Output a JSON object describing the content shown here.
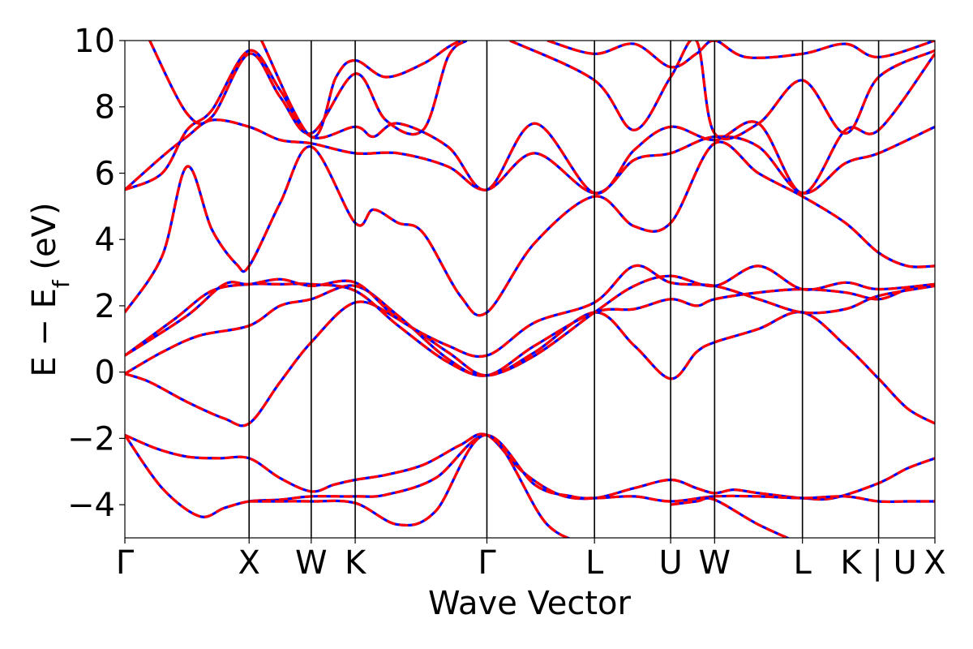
{
  "chart_data": {
    "type": "line",
    "xlabel": "Wave Vector",
    "ylabel": {
      "prefix": "E − E",
      "subscript": "f",
      "suffix": " (eV)"
    },
    "ylim": [
      -5,
      10
    ],
    "yticks": [
      -4,
      -2,
      0,
      2,
      4,
      6,
      8,
      10
    ],
    "ytick_labels": [
      "−4",
      "−2",
      "0",
      "2",
      "4",
      "6",
      "8",
      "10"
    ],
    "xlim": [
      0,
      6.52
    ],
    "kpoints": [
      {
        "label": "Γ",
        "x": 0.0
      },
      {
        "label": "X",
        "x": 1.0
      },
      {
        "label": "W",
        "x": 1.5
      },
      {
        "label": "K",
        "x": 1.854
      },
      {
        "label": "Γ",
        "x": 2.914
      },
      {
        "label": "L",
        "x": 3.78
      },
      {
        "label": "U",
        "x": 4.393
      },
      {
        "label": "W",
        "x": 4.747
      },
      {
        "label": "L",
        "x": 5.454
      },
      {
        "label": "K | U",
        "x": 6.067
      },
      {
        "label": "X",
        "x": 6.52
      }
    ],
    "colors": {
      "line_primary": "#ff0000",
      "line_secondary": "#0000ff",
      "divider": "#000000"
    },
    "series": [
      {
        "values": [
          [
            0.0,
            -1.9
          ],
          [
            0.25,
            -2.3
          ],
          [
            0.5,
            -2.55
          ],
          [
            0.75,
            -2.6
          ],
          [
            1.0,
            -2.6
          ],
          [
            1.25,
            -3.2
          ],
          [
            1.5,
            -3.6
          ],
          [
            1.68,
            -3.4
          ],
          [
            1.854,
            -3.25
          ],
          [
            2.1,
            -3.1
          ],
          [
            2.4,
            -2.8
          ],
          [
            2.7,
            -2.2
          ],
          [
            2.914,
            -1.9
          ],
          [
            3.2,
            -3.0
          ],
          [
            3.5,
            -3.7
          ],
          [
            3.78,
            -3.8
          ],
          [
            4.1,
            -3.5
          ],
          [
            4.393,
            -3.25
          ],
          [
            4.6,
            -3.5
          ],
          [
            4.747,
            -3.65
          ],
          [
            4.9,
            -3.55
          ],
          [
            5.1,
            -3.65
          ],
          [
            5.454,
            -3.8
          ],
          [
            5.7,
            -3.8
          ],
          [
            6.067,
            -3.35
          ],
          [
            6.3,
            -2.9
          ],
          [
            6.52,
            -2.6
          ]
        ]
      },
      {
        "values": [
          [
            0.0,
            -1.9
          ],
          [
            0.3,
            -3.5
          ],
          [
            0.6,
            -4.35
          ],
          [
            0.8,
            -4.1
          ],
          [
            1.0,
            -3.9
          ],
          [
            1.25,
            -3.85
          ],
          [
            1.5,
            -3.75
          ],
          [
            1.854,
            -3.75
          ],
          [
            2.1,
            -3.7
          ],
          [
            2.5,
            -3.2
          ],
          [
            2.914,
            -1.9
          ],
          [
            3.3,
            -3.4
          ],
          [
            3.6,
            -3.75
          ],
          [
            3.78,
            -3.8
          ],
          [
            4.1,
            -3.75
          ],
          [
            4.393,
            -3.9
          ],
          [
            4.747,
            -3.75
          ],
          [
            5.1,
            -3.75
          ],
          [
            5.454,
            -3.8
          ],
          [
            5.8,
            -3.75
          ],
          [
            6.067,
            -3.9
          ],
          [
            6.3,
            -3.9
          ],
          [
            6.52,
            -3.9
          ]
        ]
      },
      {
        "values": [
          [
            1.0,
            -3.9
          ],
          [
            1.25,
            -3.9
          ],
          [
            1.5,
            -3.9
          ],
          [
            1.854,
            -3.95
          ],
          [
            2.2,
            -4.6
          ],
          [
            2.5,
            -4.2
          ],
          [
            2.914,
            -1.9
          ],
          [
            3.4,
            -4.6
          ],
          [
            3.78,
            -5.2
          ]
        ]
      },
      {
        "values": [
          [
            4.393,
            -4.0
          ],
          [
            4.6,
            -3.9
          ],
          [
            4.747,
            -3.85
          ],
          [
            5.1,
            -4.6
          ],
          [
            5.454,
            -5.2
          ]
        ]
      },
      {
        "values": [
          [
            0.0,
            -0.05
          ],
          [
            0.2,
            -0.3
          ],
          [
            0.5,
            -0.9
          ],
          [
            0.8,
            -1.4
          ],
          [
            1.0,
            -1.55
          ],
          [
            1.25,
            -0.3
          ],
          [
            1.5,
            0.9
          ],
          [
            1.854,
            2.1
          ],
          [
            2.2,
            1.6
          ],
          [
            2.6,
            0.6
          ],
          [
            2.914,
            -0.1
          ],
          [
            3.3,
            0.6
          ],
          [
            3.78,
            1.8
          ],
          [
            4.1,
            0.8
          ],
          [
            4.393,
            -0.2
          ],
          [
            4.6,
            0.6
          ],
          [
            4.747,
            0.9
          ],
          [
            5.1,
            1.3
          ],
          [
            5.454,
            1.8
          ],
          [
            5.8,
            0.8
          ],
          [
            6.067,
            -0.2
          ],
          [
            6.3,
            -1.1
          ],
          [
            6.52,
            -1.55
          ]
        ]
      },
      {
        "values": [
          [
            0.0,
            -0.05
          ],
          [
            0.3,
            0.6
          ],
          [
            0.6,
            1.1
          ],
          [
            1.0,
            1.4
          ],
          [
            1.25,
            2.0
          ],
          [
            1.5,
            2.2
          ],
          [
            1.854,
            2.6
          ],
          [
            2.2,
            1.7
          ],
          [
            2.6,
            0.4
          ],
          [
            2.914,
            -0.1
          ],
          [
            3.3,
            0.8
          ],
          [
            3.78,
            1.8
          ],
          [
            4.1,
            1.9
          ],
          [
            4.393,
            2.2
          ],
          [
            4.6,
            2.0
          ],
          [
            4.747,
            2.2
          ],
          [
            5.1,
            2.4
          ],
          [
            5.454,
            2.5
          ],
          [
            5.8,
            2.4
          ],
          [
            6.067,
            2.2
          ],
          [
            6.3,
            2.5
          ],
          [
            6.52,
            2.65
          ]
        ]
      },
      {
        "values": [
          [
            0.0,
            0.5
          ],
          [
            0.4,
            1.6
          ],
          [
            0.7,
            2.45
          ],
          [
            1.0,
            2.65
          ],
          [
            1.25,
            2.65
          ],
          [
            1.5,
            2.65
          ],
          [
            1.854,
            2.45
          ],
          [
            2.2,
            1.4
          ],
          [
            2.6,
            0.3
          ],
          [
            2.914,
            -0.1
          ],
          [
            3.3,
            0.5
          ],
          [
            3.78,
            1.8
          ],
          [
            4.1,
            2.6
          ],
          [
            4.393,
            2.9
          ],
          [
            4.747,
            2.6
          ],
          [
            5.1,
            3.2
          ],
          [
            5.454,
            2.5
          ],
          [
            5.8,
            2.7
          ],
          [
            6.067,
            2.5
          ],
          [
            6.52,
            2.65
          ]
        ]
      },
      {
        "values": [
          [
            0.0,
            0.5
          ],
          [
            0.5,
            1.7
          ],
          [
            0.8,
            2.65
          ],
          [
            1.0,
            2.65
          ],
          [
            1.25,
            2.8
          ],
          [
            1.5,
            2.6
          ],
          [
            1.854,
            2.7
          ],
          [
            2.2,
            1.6
          ],
          [
            2.6,
            0.8
          ],
          [
            2.914,
            0.5
          ],
          [
            3.3,
            1.5
          ],
          [
            3.78,
            2.1
          ],
          [
            4.1,
            3.2
          ],
          [
            4.393,
            2.7
          ],
          [
            4.747,
            2.6
          ],
          [
            5.1,
            2.2
          ],
          [
            5.454,
            1.8
          ],
          [
            5.8,
            1.9
          ],
          [
            6.067,
            2.3
          ],
          [
            6.52,
            2.6
          ]
        ]
      },
      {
        "values": [
          [
            0.0,
            1.8
          ],
          [
            0.3,
            3.5
          ],
          [
            0.5,
            6.2
          ],
          [
            0.7,
            4.3
          ],
          [
            0.9,
            3.25
          ],
          [
            1.0,
            3.2
          ],
          [
            1.25,
            5.1
          ],
          [
            1.5,
            6.8
          ],
          [
            1.854,
            4.5
          ],
          [
            2.0,
            4.9
          ],
          [
            2.2,
            4.5
          ],
          [
            2.4,
            4.2
          ],
          [
            2.7,
            2.3
          ],
          [
            2.914,
            1.8
          ],
          [
            3.3,
            3.9
          ],
          [
            3.78,
            5.3
          ],
          [
            4.1,
            4.4
          ],
          [
            4.393,
            4.5
          ],
          [
            4.747,
            6.9
          ],
          [
            5.1,
            6.0
          ],
          [
            5.454,
            5.3
          ],
          [
            5.8,
            4.5
          ],
          [
            6.067,
            3.6
          ],
          [
            6.3,
            3.2
          ],
          [
            6.52,
            3.2
          ]
        ]
      },
      {
        "values": [
          [
            0.0,
            5.5
          ],
          [
            0.3,
            6.5
          ],
          [
            0.5,
            7.1
          ],
          [
            0.7,
            7.6
          ],
          [
            1.0,
            7.4
          ],
          [
            1.25,
            7.0
          ],
          [
            1.5,
            6.9
          ],
          [
            1.854,
            6.6
          ],
          [
            2.2,
            6.6
          ],
          [
            2.6,
            6.2
          ],
          [
            2.914,
            5.5
          ],
          [
            3.3,
            6.6
          ],
          [
            3.78,
            5.4
          ],
          [
            4.1,
            6.4
          ],
          [
            4.393,
            6.6
          ],
          [
            4.747,
            7.1
          ],
          [
            5.1,
            6.8
          ],
          [
            5.454,
            5.4
          ],
          [
            5.8,
            6.3
          ],
          [
            6.067,
            6.6
          ],
          [
            6.52,
            7.4
          ]
        ]
      },
      {
        "values": [
          [
            0.0,
            5.5
          ],
          [
            0.3,
            6.0
          ],
          [
            0.5,
            7.3
          ],
          [
            0.7,
            7.9
          ],
          [
            1.0,
            9.7
          ],
          [
            1.25,
            8.5
          ],
          [
            1.5,
            7.1
          ],
          [
            1.854,
            7.4
          ],
          [
            2.0,
            7.1
          ],
          [
            2.2,
            7.5
          ],
          [
            2.6,
            6.8
          ],
          [
            2.914,
            5.5
          ],
          [
            3.3,
            7.5
          ],
          [
            3.78,
            5.4
          ],
          [
            4.1,
            6.7
          ],
          [
            4.393,
            7.4
          ],
          [
            4.747,
            7.0
          ],
          [
            5.1,
            7.5
          ],
          [
            5.454,
            5.4
          ],
          [
            5.8,
            7.3
          ],
          [
            6.067,
            7.3
          ],
          [
            6.52,
            9.6
          ]
        ]
      },
      {
        "values": [
          [
            0.2,
            10.0
          ],
          [
            0.5,
            7.8
          ],
          [
            0.7,
            7.7
          ],
          [
            1.0,
            9.6
          ],
          [
            1.25,
            8.3
          ],
          [
            1.5,
            7.2
          ],
          [
            1.854,
            9.0
          ],
          [
            2.1,
            7.6
          ],
          [
            2.4,
            7.3
          ],
          [
            2.6,
            9.5
          ],
          [
            2.75,
            10.0
          ]
        ]
      },
      {
        "values": [
          [
            3.1,
            10.0
          ],
          [
            3.78,
            8.8
          ],
          [
            4.1,
            7.3
          ],
          [
            4.393,
            8.9
          ],
          [
            4.6,
            10.0
          ],
          [
            4.747,
            7.2
          ],
          [
            5.1,
            7.5
          ],
          [
            5.454,
            8.8
          ],
          [
            5.8,
            7.2
          ],
          [
            6.067,
            8.9
          ],
          [
            6.52,
            9.7
          ]
        ]
      },
      {
        "values": [
          [
            1.1,
            10.0
          ],
          [
            1.5,
            7.1
          ],
          [
            1.7,
            8.9
          ],
          [
            1.854,
            9.4
          ],
          [
            2.1,
            8.9
          ],
          [
            2.4,
            9.3
          ],
          [
            2.6,
            9.8
          ],
          [
            2.7,
            10.0
          ]
        ]
      },
      {
        "values": [
          [
            3.4,
            10.0
          ],
          [
            3.78,
            9.6
          ],
          [
            4.1,
            9.9
          ],
          [
            4.393,
            9.2
          ],
          [
            4.6,
            9.6
          ],
          [
            4.747,
            10.0
          ],
          [
            5.0,
            9.5
          ],
          [
            5.454,
            9.6
          ],
          [
            5.8,
            9.9
          ],
          [
            6.067,
            9.5
          ],
          [
            6.52,
            10.0
          ]
        ]
      }
    ]
  }
}
